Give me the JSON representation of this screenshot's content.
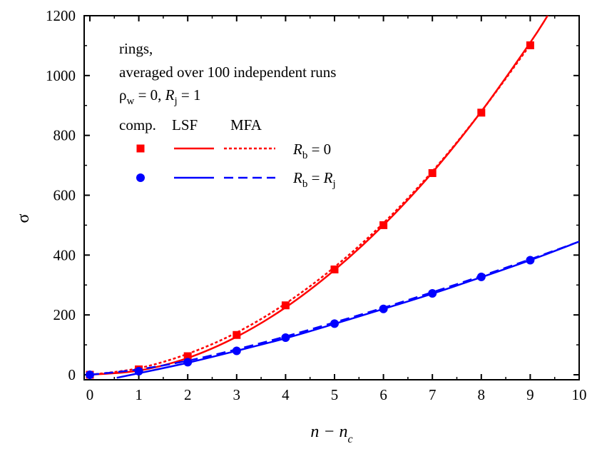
{
  "chart_data": {
    "type": "scatter",
    "xlabel": "n − n",
    "xlabel_sub": "c",
    "ylabel": "σ",
    "xlim": [
      0,
      10
    ],
    "ylim": [
      0,
      1200
    ],
    "xticks": [
      "0",
      "1",
      "2",
      "3",
      "4",
      "5",
      "6",
      "7",
      "8",
      "9",
      "10"
    ],
    "yticks": [
      "0",
      "200",
      "400",
      "600",
      "800",
      "1000",
      "1200"
    ],
    "annotations": {
      "line1": "rings,",
      "line2": "averaged over 100 independent runs",
      "line3_rho": "ρ",
      "line3_rho_sub": "w",
      "line3_rest": " = 0, ",
      "line3_R": "R",
      "line3_R_sub": "j",
      "line3_end": " = 1"
    },
    "legend": {
      "header_comp": "comp.",
      "header_lsf": "LSF",
      "header_mfa": "MFA",
      "row1": {
        "R": "R",
        "sub": "b",
        "rest": " = 0"
      },
      "row2": {
        "R": "R",
        "sub": "b",
        "mid": " = ",
        "R2": "R",
        "sub2": "j"
      }
    },
    "colors": {
      "red": "#ff0000",
      "blue": "#0000ff"
    },
    "series": [
      {
        "group": "Rb=0",
        "kind": "comp",
        "marker": "square",
        "color": "#ff0000",
        "x": [
          0,
          1,
          2,
          3,
          4,
          5,
          6,
          7,
          8,
          9
        ],
        "y": [
          0,
          18,
          62,
          133,
          232,
          352,
          500,
          674,
          876,
          1101
        ]
      },
      {
        "group": "Rb=0",
        "kind": "LSF",
        "style": "solid",
        "color": "#ff0000",
        "x": [
          0,
          1,
          2,
          3,
          4,
          5,
          6,
          7,
          8,
          9,
          9.4
        ],
        "y": [
          0,
          14,
          56,
          127,
          225,
          350,
          500,
          676,
          880,
          1110,
          1212
        ]
      },
      {
        "group": "Rb=0",
        "kind": "MFA",
        "style": "dotted",
        "color": "#ff0000",
        "x": [
          0,
          1,
          2,
          3,
          4,
          5,
          6,
          7,
          8,
          9
        ],
        "y": [
          0,
          22,
          70,
          141,
          238,
          360,
          507,
          680,
          880,
          1103
        ]
      },
      {
        "group": "Rb=Rj",
        "kind": "comp",
        "marker": "circle",
        "color": "#0000ff",
        "x": [
          0,
          1,
          2,
          3,
          4,
          5,
          6,
          7,
          8,
          9
        ],
        "y": [
          0,
          12,
          42,
          80,
          124,
          171,
          220,
          272,
          327,
          383
        ]
      },
      {
        "group": "Rb=Rj",
        "kind": "LSF",
        "style": "solid",
        "color": "#0000ff",
        "x": [
          0.55,
          1,
          2,
          3,
          4,
          5,
          6,
          7,
          8,
          9,
          10
        ],
        "y": [
          -10,
          5,
          40,
          80,
          122,
          170,
          220,
          271,
          326,
          383,
          445
        ]
      },
      {
        "group": "Rb=Rj",
        "kind": "MFA",
        "style": "dashed",
        "color": "#0000ff",
        "x": [
          0,
          1,
          2,
          3,
          4,
          5,
          6,
          7,
          8,
          9,
          10
        ],
        "y": [
          0,
          18,
          47,
          85,
          128,
          175,
          224,
          276,
          330,
          386,
          445
        ]
      }
    ]
  }
}
